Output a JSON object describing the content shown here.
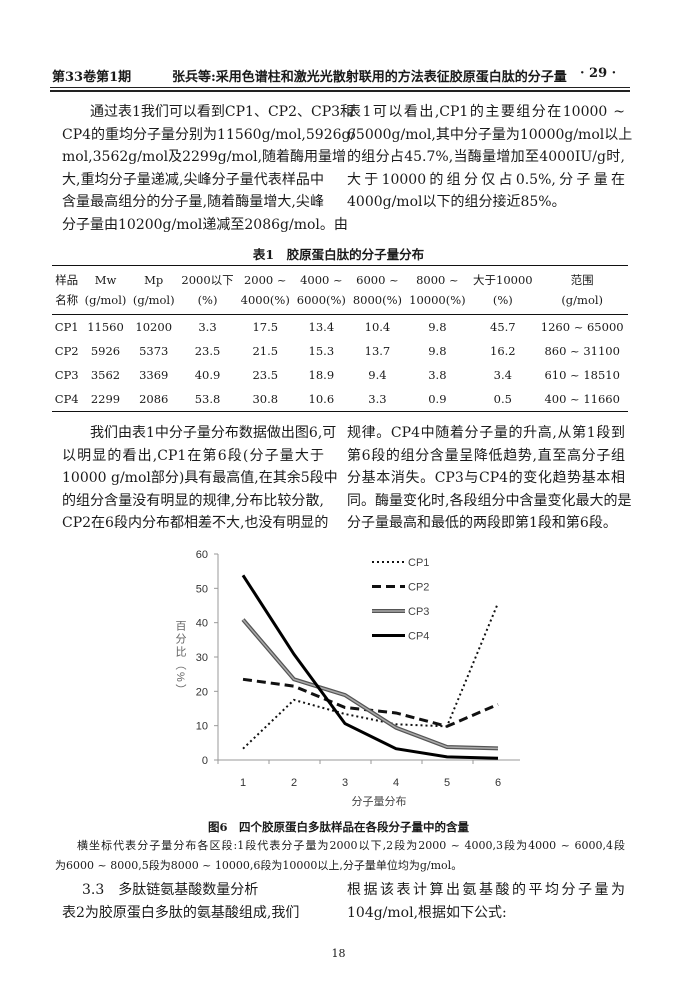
{
  "header": {
    "issue": "第33卷第1期",
    "title": "张兵等:采用色谱柱和激光光散射联用的方法表征胶原蛋白肽的分子量",
    "page": "· 29 ·"
  },
  "para1": {
    "left": [
      "通过表1我们可以看到CP1、CP2、CP3和",
      "CP4的重均分子量分别为11560g/mol,5926g/",
      "mol,3562g/mol及2299g/mol,随着酶用量增",
      "大,重均分子量递减,尖峰分子量代表样品中",
      "含量最高组分的分子量,随着酶量增大,尖峰",
      "分子量由10200g/mol递减至2086g/mol。由"
    ],
    "right": [
      "表1可以看出,CP1的主要组分在10000 ~",
      "65000g/mol,其中分子量为10000g/mol以上",
      "的组分占45.7%,当酶量增加至4000IU/g时,",
      "大于10000的组分仅占0.5%,分子量在",
      "4000g/mol以下的组分接近85%。"
    ]
  },
  "table1": {
    "title": "表1　胶原蛋白肽的分子量分布",
    "headers": [
      [
        "样品",
        "名称"
      ],
      [
        "Mw",
        "(g/mol)"
      ],
      [
        "Mp",
        "(g/mol)"
      ],
      [
        "2000以下",
        "(%)"
      ],
      [
        "2000 ~",
        "4000(%)"
      ],
      [
        "4000 ~",
        "6000(%)"
      ],
      [
        "6000 ~",
        "8000(%)"
      ],
      [
        "8000 ~",
        "10000(%)"
      ],
      [
        "大于10000",
        "(%)"
      ],
      [
        "范围",
        "(g/mol)"
      ]
    ],
    "rows": [
      [
        "CP1",
        "11560",
        "10200",
        "3.3",
        "17.5",
        "13.4",
        "10.4",
        "9.8",
        "45.7",
        "1260 ~ 65000"
      ],
      [
        "CP2",
        "5926",
        "5373",
        "23.5",
        "21.5",
        "15.3",
        "13.7",
        "9.8",
        "16.2",
        "860 ~ 31100"
      ],
      [
        "CP3",
        "3562",
        "3369",
        "40.9",
        "23.5",
        "18.9",
        "9.4",
        "3.8",
        "3.4",
        "610 ~ 18510"
      ],
      [
        "CP4",
        "2299",
        "2086",
        "53.8",
        "30.8",
        "10.6",
        "3.3",
        "0.9",
        "0.5",
        "400 ~ 11660"
      ]
    ]
  },
  "para2": {
    "left": [
      "我们由表1中分子量分布数据做出图6,可",
      "以明显的看出,CP1在第6段(分子量大于",
      "10000 g/mol部分)具有最高值,在其余5段中",
      "的组分含量没有明显的规律,分布比较分散,",
      "CP2在6段内分布都相差不大,也没有明显的"
    ],
    "right": [
      "规律。CP4中随着分子量的升高,从第1段到",
      "第6段的组分含量呈降低趋势,直至高分子组",
      "分基本消失。CP3与CP4的变化趋势基本相",
      "同。酶量变化时,各段组分中含量变化最大的是",
      "分子量最高和最低的两段即第1段和第6段。"
    ]
  },
  "chart_data": {
    "type": "line",
    "categories": [
      "1",
      "2",
      "3",
      "4",
      "5",
      "6"
    ],
    "xlabel": "分子量分布",
    "ylabel": "百分比（%）",
    "ylim": [
      0,
      60
    ],
    "yticks": [
      "0",
      "10",
      "20",
      "30",
      "40",
      "50",
      "60"
    ],
    "legend_position": "top-right",
    "grid": false,
    "series": [
      {
        "name": "CP1",
        "style": "dotted",
        "color": "#111111",
        "values": [
          3.3,
          17.5,
          13.4,
          10.4,
          9.8,
          45.7
        ]
      },
      {
        "name": "CP2",
        "style": "dashed",
        "color": "#111111",
        "values": [
          23.5,
          21.5,
          15.3,
          13.7,
          9.8,
          16.2
        ]
      },
      {
        "name": "CP3",
        "style": "double-gray",
        "color": "#777777",
        "values": [
          40.9,
          23.5,
          18.9,
          9.4,
          3.8,
          3.4
        ]
      },
      {
        "name": "CP4",
        "style": "solid",
        "color": "#000000",
        "values": [
          53.8,
          30.8,
          10.6,
          3.3,
          0.9,
          0.5
        ]
      }
    ]
  },
  "figure": {
    "caption": "图6　四个胶原蛋白多肽样品在各段分子量中的含量",
    "note": [
      "横坐标代表分子量分布各区段:1段代表分子量为2000以下,2段为2000 ~ 4000,3段为4000 ~ 6000,4段",
      "为6000 ~ 8000,5段为8000 ~ 10000,6段为10000以上,分子量单位均为g/mol。"
    ]
  },
  "section": {
    "heading": "3.3　多肽链氨基酸数量分析",
    "left": [
      "表2为胶原蛋白多肽的氨基酸组成,我们"
    ],
    "right": [
      "根据该表计算出氨基酸的平均分子量为",
      "104g/mol,根据如下公式:"
    ]
  },
  "footer": {
    "page_number": "18"
  }
}
